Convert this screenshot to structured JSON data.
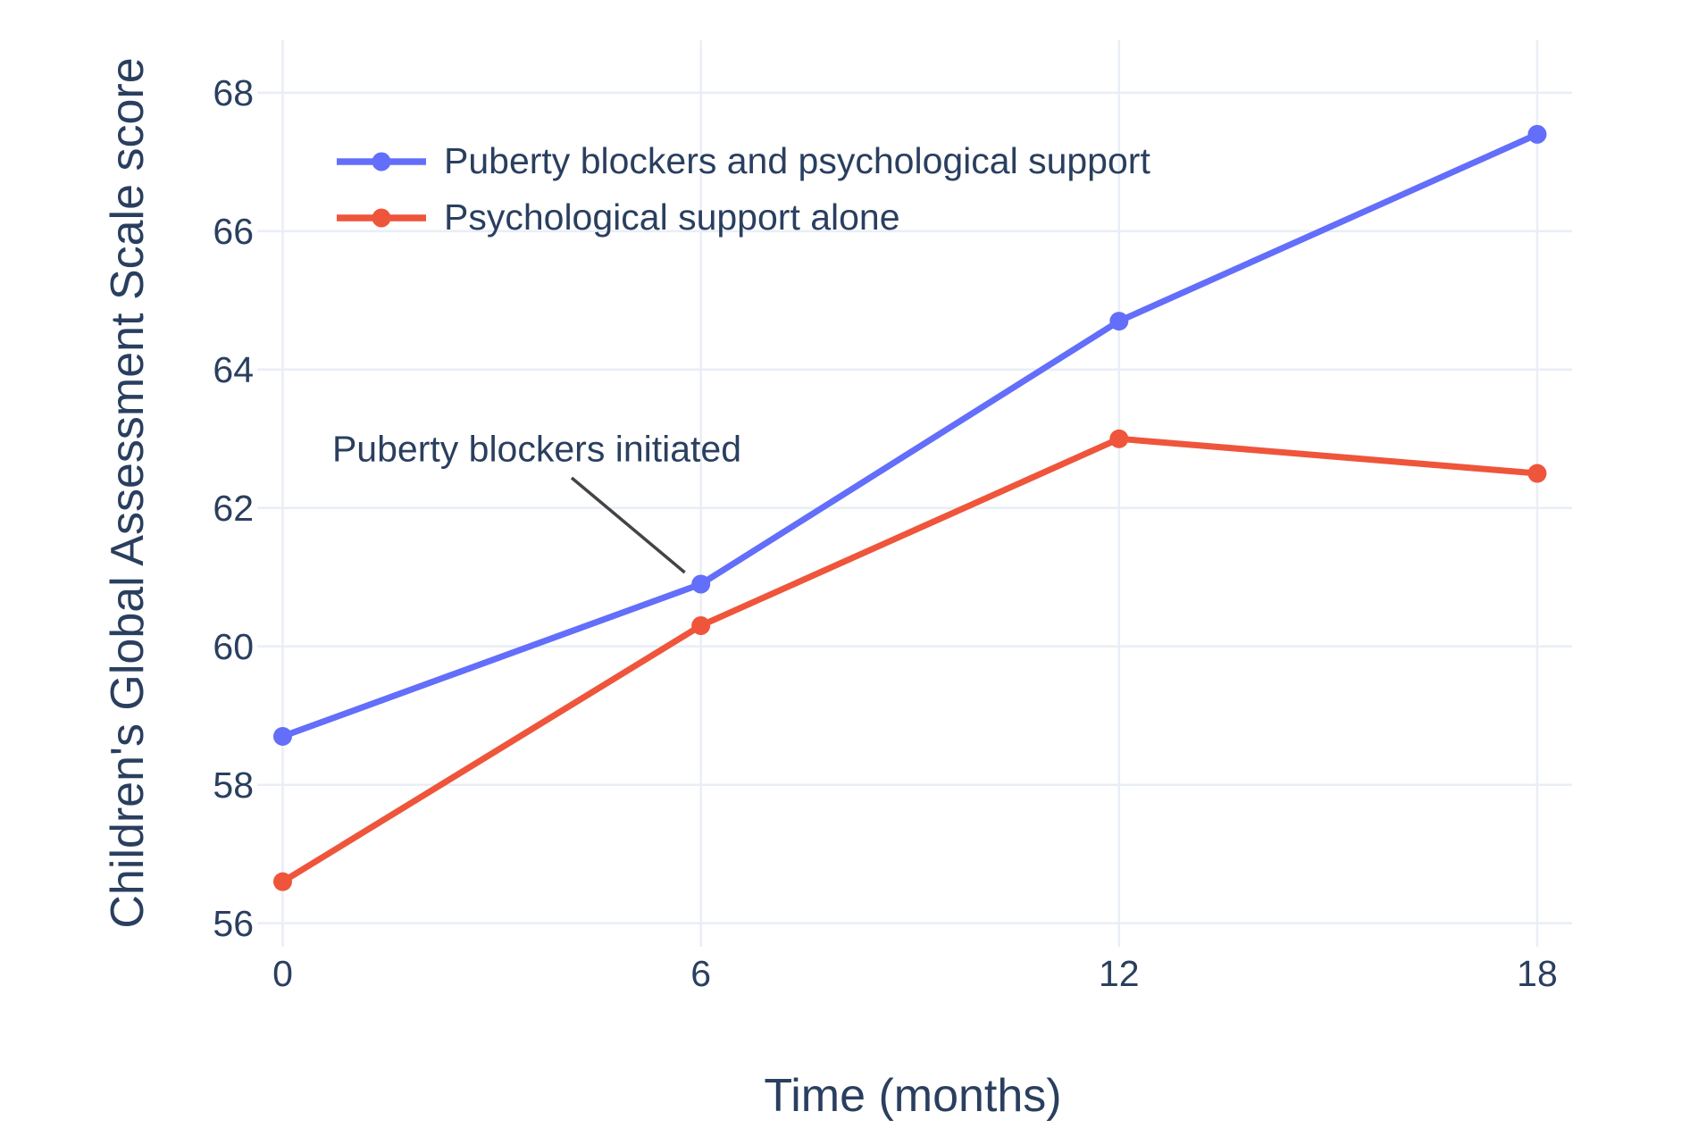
{
  "chart_data": {
    "type": "line",
    "title": "",
    "x": [
      0,
      6,
      12,
      18
    ],
    "series": [
      {
        "name": "Puberty blockers and psychological support",
        "color": "#636EFA",
        "values": [
          58.7,
          60.9,
          64.7,
          67.4
        ]
      },
      {
        "name": "Psychological support alone",
        "color": "#EF553B",
        "values": [
          56.6,
          60.3,
          63.0,
          62.5
        ]
      }
    ],
    "xlabel": "Time (months)",
    "ylabel": "Children's Global Assessment Scale score",
    "xticks": [
      0,
      6,
      12,
      18
    ],
    "yticks": [
      56,
      58,
      60,
      62,
      64,
      66,
      68
    ],
    "xlim": [
      -0.365,
      18.5
    ],
    "ylim": [
      55.66,
      68.76
    ],
    "grid": true,
    "legend_position": "inside-top-left",
    "annotation": {
      "text": "Puberty blockers initiated",
      "points_to": {
        "series": "Puberty blockers and psychological support",
        "x": 6,
        "y": 60.9
      }
    },
    "colors": {
      "grid": "#E9EEF6",
      "text": "#2a3f5f",
      "annotation_line": "#444444",
      "background": "#ffffff"
    }
  }
}
